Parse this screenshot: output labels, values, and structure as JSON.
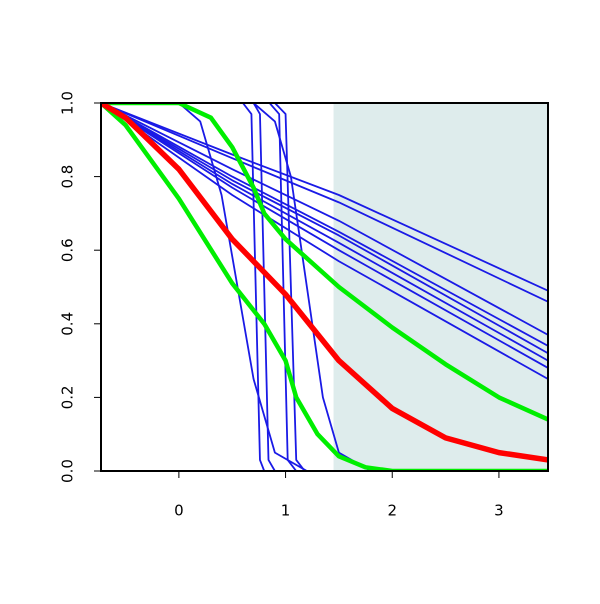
{
  "chart_data": {
    "type": "line",
    "xlim": [
      -0.73,
      3.46
    ],
    "ylim": [
      0,
      1
    ],
    "xticks": [
      0,
      1,
      2,
      3
    ],
    "yticks": [
      {
        "value": 0,
        "label": "0.0"
      },
      0.2,
      0.4,
      0.6,
      0.8,
      {
        "value": 1,
        "label": "1.0"
      }
    ],
    "shade_from": 1.45,
    "shade_color": "#deecec",
    "series": [
      {
        "color": "#1a1ae6",
        "line_width": 1.8,
        "x": [
          -0.73,
          0.5,
          1.5,
          3.46
        ],
        "values": [
          1,
          0.86,
          0.75,
          0.49
        ]
      },
      {
        "color": "#1a1ae6",
        "line_width": 1.8,
        "x": [
          -0.73,
          0.5,
          1.5,
          3.46
        ],
        "values": [
          1,
          0.85,
          0.73,
          0.46
        ]
      },
      {
        "color": "#1a1ae6",
        "line_width": 1.8,
        "x": [
          -0.73,
          0.5,
          1.5,
          3.46
        ],
        "values": [
          1,
          0.82,
          0.68,
          0.37
        ]
      },
      {
        "color": "#1a1ae6",
        "line_width": 1.8,
        "x": [
          -0.73,
          0.5,
          1.5,
          3.46
        ],
        "values": [
          1,
          0.8,
          0.65,
          0.34
        ]
      },
      {
        "color": "#1a1ae6",
        "line_width": 1.8,
        "x": [
          -0.73,
          0.5,
          1.5,
          3.46
        ],
        "values": [
          1,
          0.79,
          0.64,
          0.32
        ]
      },
      {
        "color": "#1a1ae6",
        "line_width": 1.8,
        "x": [
          -0.73,
          0.5,
          1.5,
          3.46
        ],
        "values": [
          1,
          0.78,
          0.62,
          0.3
        ]
      },
      {
        "color": "#1a1ae6",
        "line_width": 1.8,
        "x": [
          -0.73,
          0.5,
          1.5,
          3.46
        ],
        "values": [
          1,
          0.77,
          0.6,
          0.28
        ]
      },
      {
        "color": "#1a1ae6",
        "line_width": 1.8,
        "x": [
          -0.73,
          0.5,
          1.5,
          3.46
        ],
        "values": [
          1,
          0.75,
          0.57,
          0.25
        ]
      },
      {
        "color": "#1a1ae6",
        "line_width": 1.8,
        "x": [
          -0.73,
          0.6,
          0.68,
          0.72,
          0.76,
          0.8,
          3.46
        ],
        "values": [
          1,
          1,
          0.97,
          0.5,
          0.03,
          0,
          0
        ]
      },
      {
        "color": "#1a1ae6",
        "line_width": 1.8,
        "x": [
          -0.73,
          0.7,
          0.76,
          0.8,
          0.84,
          0.9,
          3.46
        ],
        "values": [
          1,
          1,
          0.97,
          0.5,
          0.03,
          0,
          0
        ]
      },
      {
        "color": "#1a1ae6",
        "line_width": 1.8,
        "x": [
          -0.73,
          0.85,
          0.94,
          0.98,
          1.02,
          1.1,
          3.46
        ],
        "values": [
          1,
          1,
          0.97,
          0.5,
          0.03,
          0,
          0
        ]
      },
      {
        "color": "#1a1ae6",
        "line_width": 1.8,
        "x": [
          -0.73,
          0.9,
          1.0,
          1.05,
          1.1,
          1.18,
          3.46
        ],
        "values": [
          1,
          1,
          0.97,
          0.5,
          0.03,
          0,
          0
        ]
      },
      {
        "color": "#1a1ae6",
        "line_width": 1.8,
        "x": [
          -0.73,
          0,
          0.2,
          0.4,
          0.55,
          0.7,
          0.9,
          1.2,
          3.46
        ],
        "values": [
          1,
          1,
          0.95,
          0.75,
          0.5,
          0.25,
          0.05,
          0,
          0
        ]
      },
      {
        "color": "#1a1ae6",
        "line_width": 1.8,
        "x": [
          -0.73,
          0.7,
          0.9,
          1.05,
          1.2,
          1.35,
          1.5,
          1.8,
          3.46
        ],
        "values": [
          1,
          1,
          0.95,
          0.8,
          0.5,
          0.2,
          0.05,
          0,
          0
        ]
      },
      {
        "color": "#00ee00",
        "line_width": 4.5,
        "x": [
          -0.73,
          0,
          0.3,
          0.5,
          0.7,
          0.8,
          1,
          1.5,
          2,
          2.5,
          3,
          3.46
        ],
        "values": [
          1,
          1,
          0.96,
          0.88,
          0.77,
          0.7,
          0.63,
          0.5,
          0.39,
          0.29,
          0.2,
          0.14
        ]
      },
      {
        "color": "#00ee00",
        "line_width": 4.5,
        "x": [
          -0.73,
          -0.5,
          0,
          0.5,
          0.8,
          1,
          1.1,
          1.3,
          1.5,
          1.75,
          2,
          2.5,
          3.46
        ],
        "values": [
          1,
          0.94,
          0.74,
          0.51,
          0.4,
          0.3,
          0.2,
          0.1,
          0.04,
          0.01,
          0,
          0,
          0
        ]
      },
      {
        "color": "#ff0000",
        "line_width": 5.5,
        "x": [
          -0.73,
          -0.5,
          0,
          0.5,
          1,
          1.5,
          2,
          2.5,
          3,
          3.46
        ],
        "values": [
          1,
          0.96,
          0.82,
          0.63,
          0.48,
          0.3,
          0.17,
          0.09,
          0.05,
          0.03
        ]
      }
    ]
  }
}
